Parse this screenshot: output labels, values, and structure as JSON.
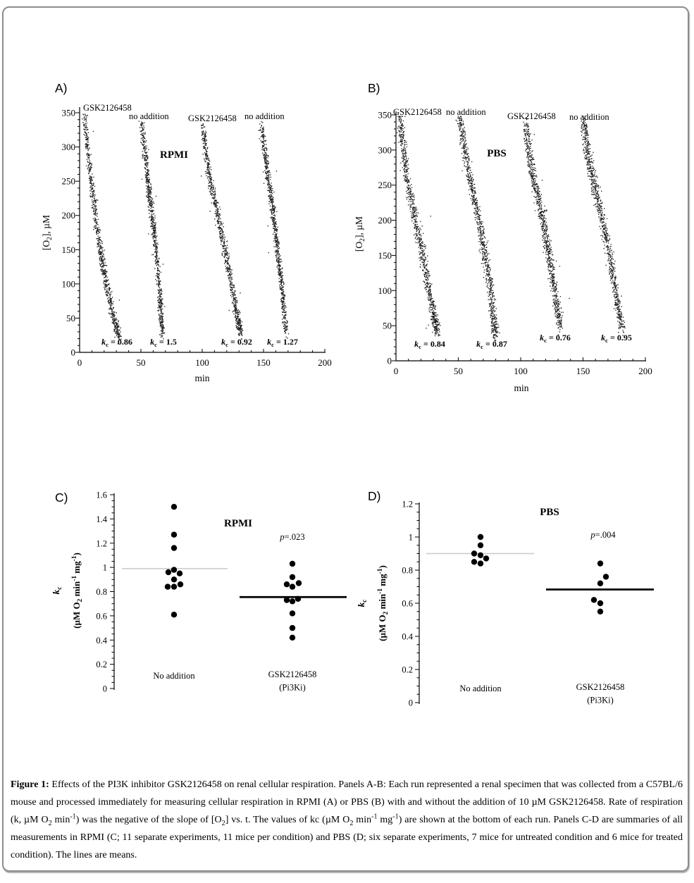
{
  "figure_frame": {
    "border_color": "#8d8d8d",
    "background": "#ffffff",
    "text_color": "#000000",
    "mean_line_gray": "#c9c9c9",
    "mean_line_black": "#000000"
  },
  "caption": {
    "text": "**Figure 1:** Effects of the PI3K inhibitor GSK2126458 on renal cellular respiration. Panels A-B: Each run represented a renal specimen that was collected from a C57BL/6 mouse and processed immediately for measuring cellular respiration in RPMI (A) or PBS (B) with and without the addition of 10 µM GSK2126458. Rate of respiration (k, µM O~2~ min^-1^) was the negative of the slope of [O~2~] vs. t. The values of kc (µM O~2~ min^-1^ mg^-1^) are shown at the bottom of each run. Panels C-D are summaries of all measurements in RPMI (C; 11 separate experiments, 11 mice per condition) and PBS (D; six separate experiments, 7 mice for untreated condition and 6 mice for treated condition). The lines are means."
  },
  "chart_data": [
    {
      "panel": "A)",
      "type": "scatter",
      "medium_label": "RPMI",
      "xlabel": "min",
      "ylabel": "[O~2~], µM",
      "xlim": [
        0,
        200
      ],
      "ylim": [
        0,
        350
      ],
      "xticks": [
        0,
        50,
        100,
        150,
        200
      ],
      "yticks": [
        0,
        50,
        100,
        150,
        200,
        250,
        300,
        350
      ],
      "x_minor_step": 10,
      "y_minor_step": 10,
      "runs": [
        {
          "label": "GSK2126458",
          "kc": "0.86",
          "trace": [
            [
              4,
              345
            ],
            [
              6,
              300
            ],
            [
              9,
              250
            ],
            [
              12,
              210
            ],
            [
              15,
              165
            ],
            [
              18,
              135
            ],
            [
              21,
              105
            ],
            [
              25,
              70
            ],
            [
              29,
              40
            ],
            [
              32,
              25
            ]
          ]
        },
        {
          "label": "no addition",
          "kc": "1.5",
          "trace": [
            [
              50,
              335
            ],
            [
              53,
              290
            ],
            [
              55,
              255
            ],
            [
              57,
              225
            ],
            [
              59,
              195
            ],
            [
              61,
              165
            ],
            [
              63,
              130
            ],
            [
              65,
              85
            ],
            [
              66,
              55
            ],
            [
              67,
              28
            ]
          ]
        },
        {
          "label": "GSK2126458",
          "kc": "0.92",
          "trace": [
            [
              100,
              330
            ],
            [
              103,
              290
            ],
            [
              106,
              255
            ],
            [
              110,
              220
            ],
            [
              114,
              185
            ],
            [
              118,
              150
            ],
            [
              122,
              115
            ],
            [
              126,
              75
            ],
            [
              129,
              45
            ],
            [
              131,
              28
            ]
          ]
        },
        {
          "label": "no addition",
          "kc": "1.27",
          "trace": [
            [
              148,
              330
            ],
            [
              151,
              290
            ],
            [
              153,
              260
            ],
            [
              156,
              225
            ],
            [
              158,
              195
            ],
            [
              160,
              165
            ],
            [
              162,
              135
            ],
            [
              164,
              105
            ],
            [
              166,
              70
            ],
            [
              168,
              28
            ]
          ]
        }
      ]
    },
    {
      "panel": "B)",
      "type": "scatter",
      "medium_label": "PBS",
      "xlabel": "min",
      "ylabel": "[O~2~], µM",
      "xlim": [
        0,
        200
      ],
      "ylim": [
        0,
        350
      ],
      "xticks": [
        0,
        50,
        100,
        150,
        200
      ],
      "yticks": [
        0,
        50,
        100,
        150,
        200,
        250,
        300,
        350
      ],
      "x_minor_step": 10,
      "y_minor_step": 10,
      "runs": [
        {
          "label": "GSK2126458",
          "kc": "0.84",
          "trace": [
            [
              3,
              350
            ],
            [
              5,
              310
            ],
            [
              8,
              270
            ],
            [
              12,
              230
            ],
            [
              16,
              195
            ],
            [
              20,
              160
            ],
            [
              24,
              120
            ],
            [
              28,
              85
            ],
            [
              31,
              55
            ],
            [
              33,
              45
            ]
          ]
        },
        {
          "label": "no addition",
          "kc": "0.87",
          "trace": [
            [
              51,
              348
            ],
            [
              54,
              310
            ],
            [
              58,
              270
            ],
            [
              62,
              235
            ],
            [
              66,
              200
            ],
            [
              70,
              165
            ],
            [
              73,
              130
            ],
            [
              76,
              95
            ],
            [
              78,
              60
            ],
            [
              80,
              35
            ]
          ]
        },
        {
          "label": "GSK2126458",
          "kc": "0.76",
          "trace": [
            [
              104,
              340
            ],
            [
              106,
              300
            ],
            [
              109,
              265
            ],
            [
              113,
              235
            ],
            [
              117,
              205
            ],
            [
              120,
              175
            ],
            [
              123,
              145
            ],
            [
              126,
              110
            ],
            [
              129,
              75
            ],
            [
              132,
              50
            ]
          ]
        },
        {
          "label": "no addition",
          "kc": "0.95",
          "trace": [
            [
              150,
              345
            ],
            [
              152,
              310
            ],
            [
              155,
              280
            ],
            [
              159,
              250
            ],
            [
              163,
              220
            ],
            [
              167,
              185
            ],
            [
              171,
              150
            ],
            [
              175,
              110
            ],
            [
              178,
              75
            ],
            [
              181,
              47
            ]
          ]
        }
      ]
    },
    {
      "panel": "C)",
      "type": "dot",
      "medium_label": "RPMI",
      "p_label": "*p*=.023",
      "ylabel_line1": "*k*~c~",
      "ylabel_line2": "(µM O~2~ min^-1^ mg^-1^)",
      "ylim": [
        0,
        1.6
      ],
      "ytick_step": 0.2,
      "y_minor_step": 0.05,
      "ytick_labels": [
        "0",
        "0.2",
        "0.4",
        "0.6",
        "0.8",
        "1",
        "1.2",
        "1.4",
        "1.6"
      ],
      "groups": [
        {
          "label_lines": [
            "No addition"
          ],
          "mean": 0.99,
          "points": [
            [
              1.5,
              0
            ],
            [
              1.27,
              0
            ],
            [
              1.16,
              0
            ],
            [
              0.98,
              0
            ],
            [
              0.96,
              -8
            ],
            [
              0.95,
              8
            ],
            [
              0.9,
              0
            ],
            [
              0.86,
              9
            ],
            [
              0.84,
              -9
            ],
            [
              0.84,
              0
            ],
            [
              0.61,
              0
            ]
          ]
        },
        {
          "label_lines": [
            "GSK2126458",
            "(Pi3Ki)"
          ],
          "mean": 0.755,
          "points": [
            [
              1.03,
              0
            ],
            [
              0.92,
              0
            ],
            [
              0.86,
              -8
            ],
            [
              0.84,
              0
            ],
            [
              0.87,
              9
            ],
            [
              0.73,
              -8
            ],
            [
              0.72,
              0
            ],
            [
              0.74,
              8
            ],
            [
              0.62,
              0
            ],
            [
              0.5,
              0
            ],
            [
              0.42,
              0
            ]
          ]
        }
      ]
    },
    {
      "panel": "D)",
      "type": "dot",
      "medium_label": "PBS",
      "p_label": "*p*=.004",
      "ylabel_line1": "*k*~c~",
      "ylabel_line2": "(µM O~2~ min^-1^ mg^-1^)",
      "ylim": [
        0,
        1.2
      ],
      "ytick_step": 0.2,
      "y_minor_step": 0.05,
      "ytick_labels": [
        "0",
        "0.2",
        "0.4",
        "0.6",
        "0.8",
        "1",
        "1.2"
      ],
      "groups": [
        {
          "label_lines": [
            "No addition"
          ],
          "mean": 0.9,
          "points": [
            [
              1.0,
              0
            ],
            [
              0.95,
              0
            ],
            [
              0.9,
              -9
            ],
            [
              0.89,
              0
            ],
            [
              0.87,
              8
            ],
            [
              0.85,
              -9
            ],
            [
              0.84,
              0
            ]
          ]
        },
        {
          "label_lines": [
            "GSK2126458",
            "(Pi3Ki)"
          ],
          "mean": 0.683,
          "points": [
            [
              0.84,
              0
            ],
            [
              0.76,
              8
            ],
            [
              0.72,
              0
            ],
            [
              0.62,
              -9
            ],
            [
              0.6,
              0
            ],
            [
              0.55,
              0
            ]
          ]
        }
      ]
    }
  ]
}
